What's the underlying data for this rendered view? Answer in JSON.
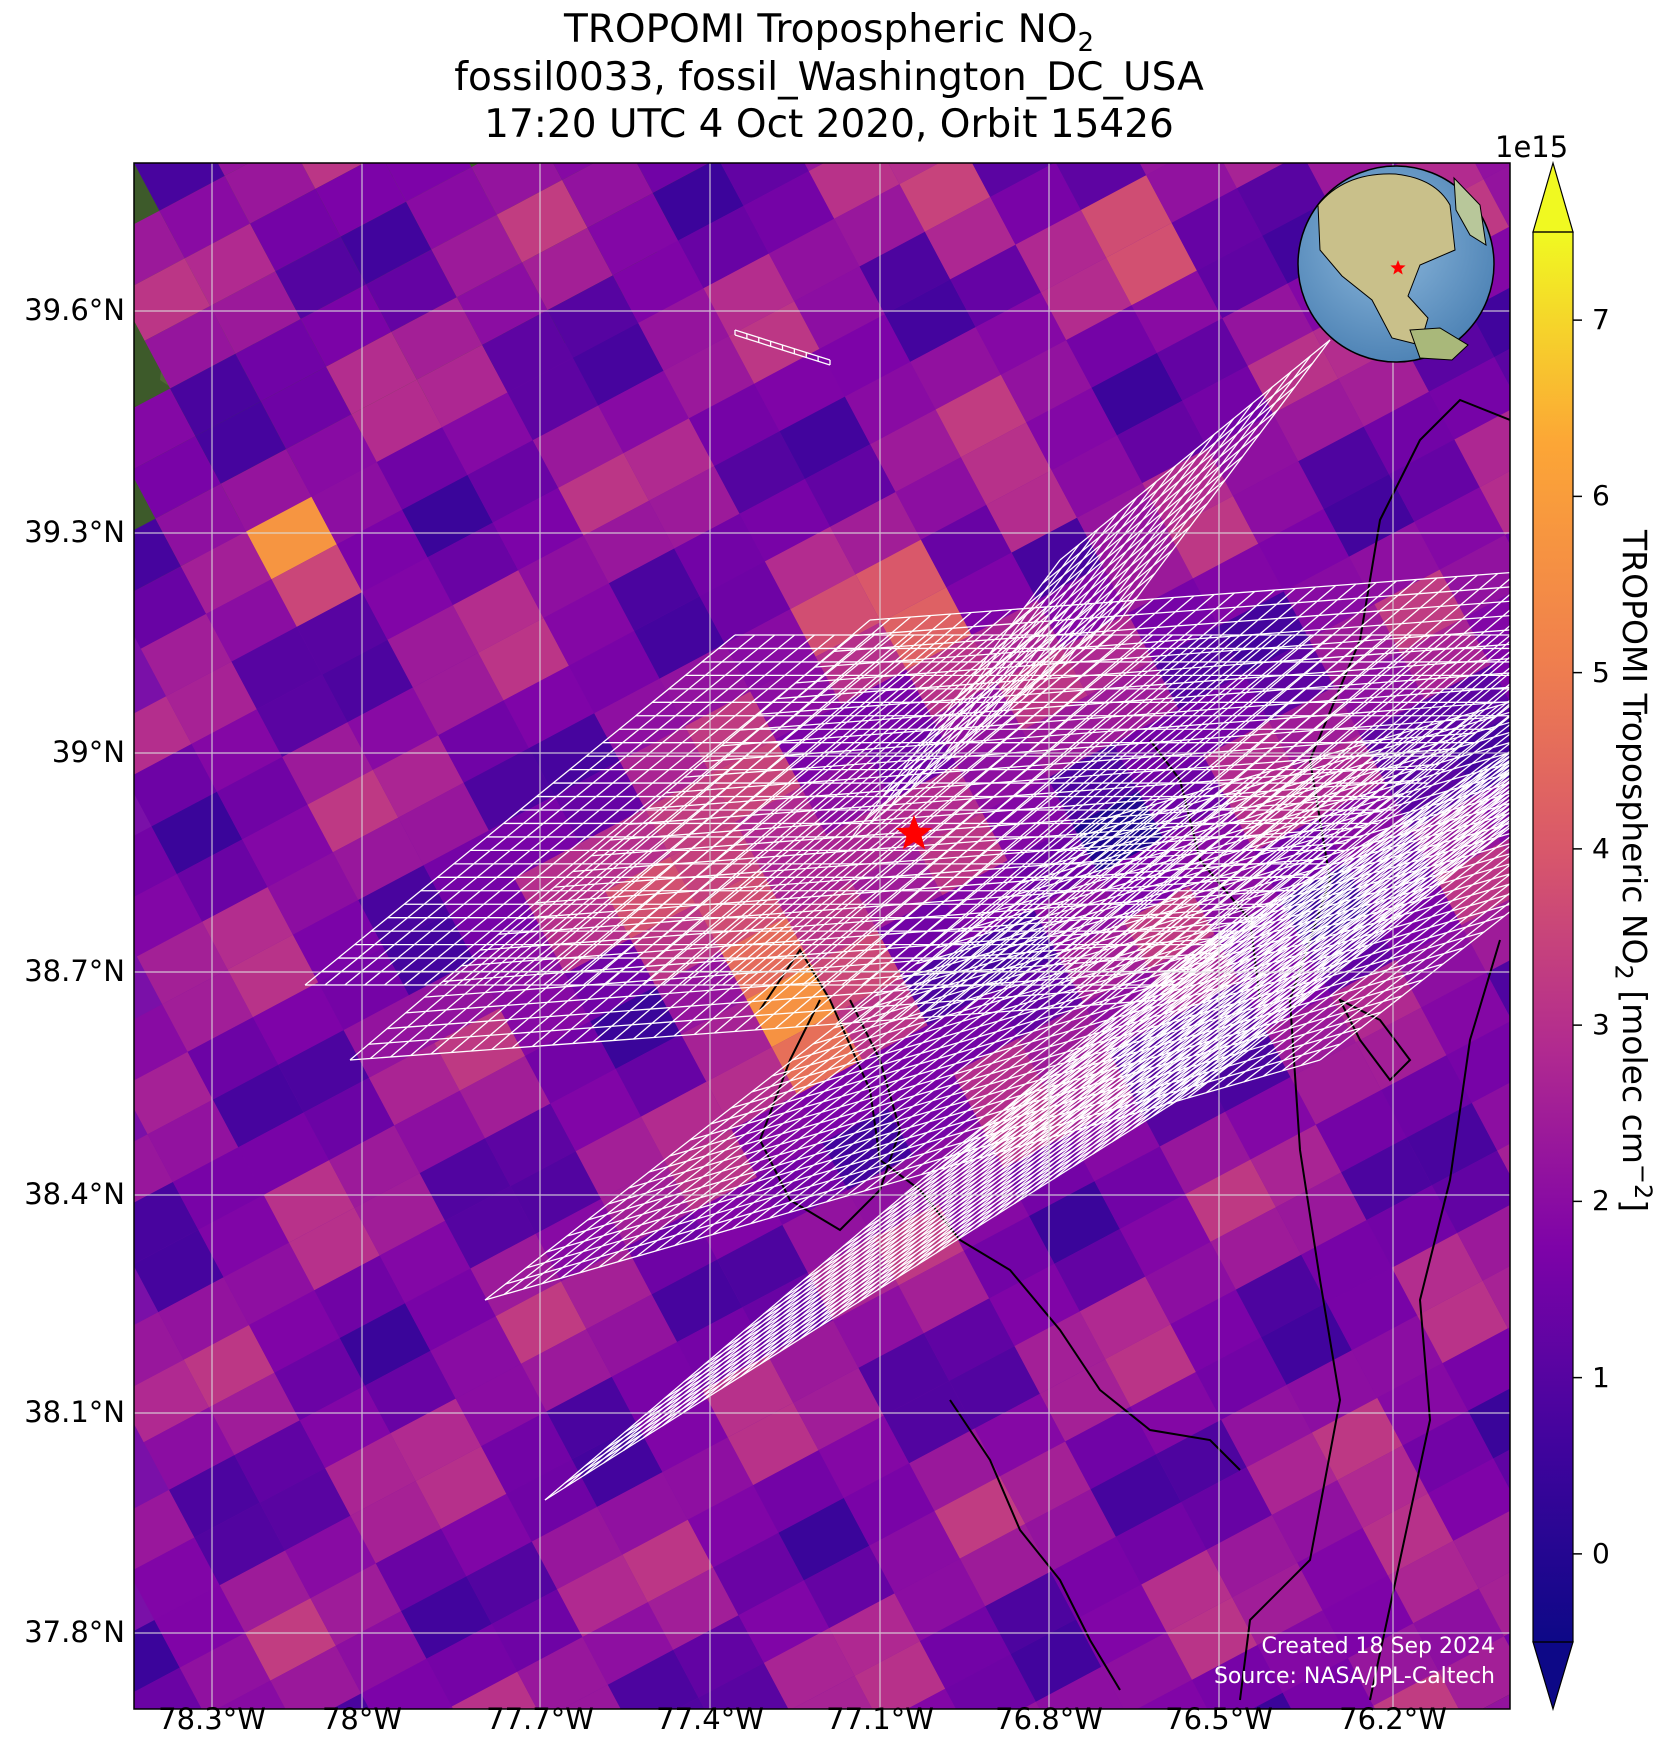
{
  "title": {
    "line1_prefix": "TROPOMI Tropospheric NO",
    "line1_sub": "2",
    "line2": "fossil0033, fossil_Washington_DC_USA",
    "line3": "17:20 UTC 4 Oct 2020, Orbit 15426"
  },
  "map": {
    "lat_ticks": [
      "39.6°N",
      "39.3°N",
      "39°N",
      "38.7°N",
      "38.4°N",
      "38.1°N",
      "37.8°N"
    ],
    "lon_ticks": [
      "78.3°W",
      "78°W",
      "77.7°W",
      "77.4°W",
      "77.1°W",
      "76.8°W",
      "76.5°W",
      "76.2°W"
    ],
    "lat_values": [
      39.6,
      39.3,
      39.0,
      38.7,
      38.4,
      38.1,
      37.8
    ],
    "lon_values": [
      -78.3,
      -78.0,
      -77.7,
      -77.4,
      -77.1,
      -76.8,
      -76.5,
      -76.2
    ],
    "lon_range": [
      -78.6,
      -76.8
    ],
    "lat_range": [
      37.7,
      39.8
    ],
    "target": {
      "name": "fossil_Washington_DC_USA",
      "marker": "red-star"
    },
    "inset_globe": {
      "center": "North America",
      "marker": "red-star"
    },
    "credits": {
      "created": "Created 18 Sep 2024",
      "source": "Source: NASA/JPL-Caltech"
    }
  },
  "colorbar": {
    "label_prefix": "TROPOMI Tropospheric NO",
    "label_sub": "2",
    "label_suffix": " [molec cm",
    "label_sup": "−2",
    "label_end": "]",
    "exponent": "1e15",
    "ticks": [
      "0",
      "1",
      "2",
      "3",
      "4",
      "5",
      "6",
      "7"
    ],
    "tick_values": [
      0,
      1,
      2,
      3,
      4,
      5,
      6,
      7
    ],
    "range": [
      -0.5,
      7.5
    ],
    "colormap": "plasma",
    "extend": "both"
  },
  "colors": {
    "plasma_low": "#0d0887",
    "plasma_mid": "#cc4778",
    "plasma_high": "#f0f921",
    "grid": "#dddddd",
    "target_star": "#ff0000"
  }
}
